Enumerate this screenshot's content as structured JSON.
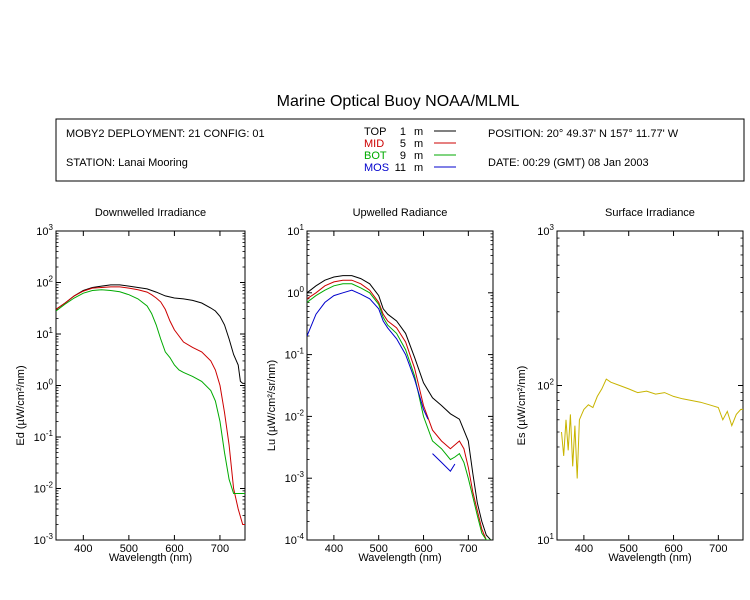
{
  "header": {
    "title": "Marine Optical Buoy NOAA/MLML",
    "deployment": "MOBY2 DEPLOYMENT: 21 CONFIG: 01",
    "station": "STATION: Lanai Mooring",
    "position": "POSITION: 20° 49.37' N   157° 11.77' W",
    "date": "DATE: 00:29 (GMT) 08 Jan 2003",
    "legend": [
      {
        "name": "TOP",
        "depth": "1",
        "unit": "m",
        "color": "#000000"
      },
      {
        "name": "MID",
        "depth": "5",
        "unit": "m",
        "color": "#cc0000"
      },
      {
        "name": "BOT",
        "depth": "9",
        "unit": "m",
        "color": "#00aa00"
      },
      {
        "name": "MOS",
        "depth": "11",
        "unit": "m",
        "color": "#0000cc"
      }
    ]
  },
  "chart_data": [
    {
      "type": "line",
      "title": "Downwelled Irradiance",
      "xlabel": "Wavelength (nm)",
      "ylabel": "Ed  (µW/cm²/nm)",
      "yscale": "log",
      "xlim": [
        340,
        755
      ],
      "ylim": [
        0.001,
        1000
      ],
      "xticks": [
        "400",
        "500",
        "600",
        "700"
      ],
      "yticks": [
        "10^-3",
        "10^-2",
        "10^-1",
        "10^0",
        "10^1",
        "10^2",
        "10^3"
      ],
      "series": [
        {
          "name": "TOP",
          "color": "#000000",
          "x": [
            340,
            360,
            380,
            400,
            420,
            440,
            460,
            480,
            500,
            520,
            540,
            560,
            580,
            600,
            620,
            640,
            660,
            680,
            690,
            700,
            710,
            720,
            730,
            740,
            745,
            750,
            755
          ],
          "y": [
            30,
            40,
            55,
            70,
            80,
            85,
            90,
            90,
            85,
            80,
            75,
            65,
            55,
            50,
            48,
            45,
            40,
            32,
            28,
            22,
            15,
            8,
            4,
            2.5,
            1.2,
            1.1,
            1.1
          ]
        },
        {
          "name": "MID",
          "color": "#cc0000",
          "x": [
            340,
            360,
            380,
            400,
            420,
            440,
            460,
            480,
            500,
            520,
            540,
            550,
            560,
            570,
            580,
            590,
            600,
            620,
            640,
            660,
            680,
            690,
            700,
            710,
            720,
            730,
            740,
            750,
            755
          ],
          "y": [
            30,
            40,
            55,
            68,
            78,
            80,
            82,
            82,
            78,
            72,
            65,
            58,
            50,
            42,
            30,
            18,
            12,
            7,
            5.5,
            4.5,
            3,
            2,
            1,
            0.3,
            0.07,
            0.01,
            0.004,
            0.002,
            0.002
          ]
        },
        {
          "name": "BOT",
          "color": "#00aa00",
          "x": [
            340,
            360,
            380,
            400,
            420,
            440,
            460,
            480,
            500,
            520,
            540,
            550,
            560,
            570,
            580,
            590,
            600,
            610,
            620,
            640,
            660,
            680,
            690,
            700,
            710,
            720,
            730,
            740,
            750,
            755
          ],
          "y": [
            28,
            38,
            50,
            62,
            70,
            72,
            70,
            66,
            58,
            48,
            35,
            25,
            15,
            8,
            4.5,
            3.5,
            2.5,
            2,
            1.8,
            1.5,
            1.2,
            0.8,
            0.5,
            0.2,
            0.05,
            0.015,
            0.008,
            0.008,
            0.008,
            0.008
          ]
        }
      ]
    },
    {
      "type": "line",
      "title": "Upwelled Radiance",
      "xlabel": "Wavelength (nm)",
      "ylabel": "Lu  (µW/cm²/sr/nm)",
      "yscale": "log",
      "xlim": [
        340,
        755
      ],
      "ylim": [
        0.0001,
        10
      ],
      "xticks": [
        "400",
        "500",
        "600",
        "700"
      ],
      "yticks": [
        "10^-4",
        "10^-3",
        "10^-2",
        "10^-1",
        "10^0",
        "10^1"
      ],
      "series": [
        {
          "name": "TOP",
          "color": "#000000",
          "x": [
            340,
            360,
            380,
            400,
            420,
            440,
            460,
            480,
            500,
            510,
            520,
            540,
            560,
            580,
            600,
            620,
            640,
            660,
            680,
            700,
            710,
            720,
            730,
            740,
            750
          ],
          "y": [
            1.0,
            1.3,
            1.6,
            1.8,
            1.9,
            1.9,
            1.7,
            1.4,
            0.9,
            0.55,
            0.45,
            0.35,
            0.22,
            0.09,
            0.035,
            0.02,
            0.015,
            0.011,
            0.009,
            0.004,
            0.0012,
            0.0004,
            0.0002,
            0.00012,
            0.0001
          ]
        },
        {
          "name": "MID",
          "color": "#cc0000",
          "x": [
            340,
            360,
            380,
            400,
            420,
            440,
            460,
            480,
            500,
            510,
            520,
            540,
            560,
            580,
            600,
            620,
            640,
            660,
            680,
            690,
            700,
            710,
            720,
            730,
            740,
            750
          ],
          "y": [
            0.8,
            1.0,
            1.3,
            1.5,
            1.6,
            1.6,
            1.4,
            1.1,
            0.7,
            0.45,
            0.35,
            0.27,
            0.16,
            0.06,
            0.015,
            0.006,
            0.004,
            0.003,
            0.004,
            0.003,
            0.0015,
            0.0006,
            0.0003,
            0.00015,
            0.0001,
            0.0001
          ]
        },
        {
          "name": "BOT",
          "color": "#00aa00",
          "x": [
            340,
            360,
            380,
            400,
            420,
            440,
            460,
            480,
            500,
            510,
            520,
            540,
            560,
            580,
            600,
            620,
            640,
            660,
            670,
            680,
            690,
            700,
            710,
            720,
            730,
            740,
            750
          ],
          "y": [
            0.7,
            0.9,
            1.1,
            1.3,
            1.4,
            1.4,
            1.2,
            1.0,
            0.65,
            0.4,
            0.3,
            0.22,
            0.12,
            0.045,
            0.01,
            0.004,
            0.003,
            0.002,
            0.0022,
            0.0025,
            0.0018,
            0.001,
            0.0005,
            0.00025,
            0.00013,
            0.0001,
            0.0001
          ]
        },
        {
          "name": "MOS",
          "color": "#0000cc",
          "x": [
            340,
            360,
            380,
            400,
            420,
            440,
            460,
            480,
            500,
            510,
            520,
            540,
            560,
            580,
            600,
            610
          ],
          "y": [
            0.2,
            0.45,
            0.7,
            0.9,
            1.0,
            1.1,
            0.95,
            0.8,
            0.55,
            0.35,
            0.27,
            0.18,
            0.1,
            0.04,
            0.013,
            0.009
          ],
          "x2": [
            620,
            640,
            660,
            670
          ],
          "y2": [
            0.0025,
            0.0018,
            0.0013,
            0.0017
          ]
        }
      ]
    },
    {
      "type": "line",
      "title": "Surface Irradiance",
      "xlabel": "Wavelength (nm)",
      "ylabel": "Es  (µW/cm²/nm)",
      "yscale": "log",
      "xlim": [
        340,
        755
      ],
      "ylim": [
        10,
        1000
      ],
      "xticks": [
        "400",
        "500",
        "600",
        "700"
      ],
      "yticks": [
        "10^1",
        "10^2",
        "10^3"
      ],
      "series": [
        {
          "name": "Es",
          "color": "#c8b400",
          "x": [
            350,
            355,
            360,
            365,
            370,
            375,
            380,
            385,
            390,
            395,
            400,
            410,
            420,
            430,
            440,
            450,
            460,
            480,
            500,
            520,
            540,
            560,
            580,
            600,
            620,
            640,
            660,
            680,
            700,
            710,
            720,
            730,
            740,
            750,
            755
          ],
          "y": [
            50,
            35,
            60,
            38,
            65,
            30,
            55,
            25,
            60,
            65,
            70,
            75,
            72,
            85,
            95,
            110,
            105,
            100,
            95,
            90,
            92,
            88,
            90,
            85,
            82,
            80,
            78,
            75,
            72,
            60,
            68,
            55,
            65,
            70,
            70
          ]
        }
      ]
    }
  ]
}
